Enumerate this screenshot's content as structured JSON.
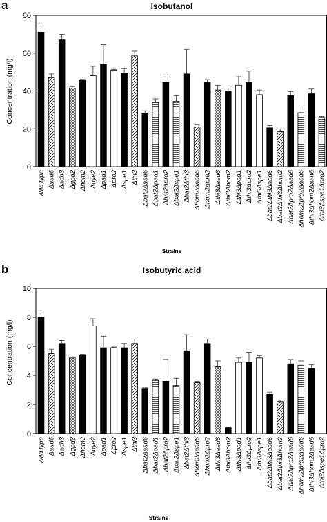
{
  "chart_data": [
    {
      "panel": "a",
      "type": "bar",
      "title": "Isobutanol",
      "xlabel": "Strains",
      "ylabel": "Concentration (mg/l)",
      "ylim": [
        0,
        80
      ],
      "yticks": [
        "0",
        "20",
        "40",
        "60",
        "80"
      ],
      "grid": false,
      "categories": [
        "Wild type",
        "Δaad6",
        "Δadh3",
        "Δgpd2",
        "Δhom2",
        "Δoye2",
        "Δpad1",
        "Δpro2",
        "Δspe1",
        "Δthi3",
        "Δbat2Δaad6",
        "Δbat2Δpad1",
        "Δbat2Δpro2",
        "Δbat2Δspe1",
        "Δbat2Δthi3",
        "Δhom2Δaad6",
        "Δhom2Δpro2",
        "Δthi3Δaad6",
        "Δthi3Δhom2",
        "Δthi3Δpad1",
        "Δthi3Δpro2",
        "Δthi3Δspe1",
        "Δbat2Δthi3Δaad6",
        "Δbat2Δthi3Δhom2",
        "Δbat2Δpro2Δaad6",
        "Δhom2Δpro2Δaad6",
        "Δthi3Δhom2Δaad6",
        "Δthi3Δspe1Δpro2"
      ],
      "values": [
        71,
        47,
        67,
        41.5,
        45.5,
        48,
        54,
        51,
        49.5,
        58.5,
        28,
        34,
        44.5,
        34.5,
        49,
        21,
        44.5,
        40.5,
        40,
        43,
        44.5,
        38,
        20.5,
        18.5,
        37.5,
        28.5,
        38.5,
        26
      ],
      "errors": [
        4.5,
        2,
        3,
        0.8,
        0.6,
        5,
        10.5,
        0.4,
        2.3,
        2.5,
        1.5,
        1.8,
        4,
        3,
        13,
        1,
        1.5,
        2.5,
        1.5,
        4.5,
        6,
        2.5,
        1.3,
        1.5,
        2.2,
        2,
        2.5,
        0.5
      ],
      "patterns": [
        "black",
        "diag",
        "black",
        "cross",
        "black",
        "white",
        "black",
        "white",
        "black",
        "diag",
        "black",
        "horiz",
        "black",
        "horiz",
        "black",
        "diag",
        "black",
        "cross",
        "black",
        "white",
        "black",
        "white",
        "black",
        "diag",
        "black",
        "horiz",
        "black",
        "horiz"
      ]
    },
    {
      "panel": "b",
      "type": "bar",
      "title": "Isobutyric acid",
      "xlabel": "Strains",
      "ylabel": "Concentration (mg/l)",
      "ylim": [
        0,
        10
      ],
      "yticks": [
        "0",
        "2",
        "4",
        "6",
        "8",
        "10"
      ],
      "grid": false,
      "categories": [
        "Wild type",
        "Δaad6",
        "Δadh3",
        "Δgpd2",
        "Δhom2",
        "Δoye2",
        "Δpad1",
        "Δpro2",
        "Δspe1",
        "Δthi3",
        "Δbat2Δaad6",
        "Δbat2Δpad1",
        "Δbat2Δpro2",
        "Δbat2Δspe1",
        "Δbat2Δthi3",
        "Δhom2Δaad6",
        "Δhom2Δpro2",
        "Δthi3Δaad6",
        "Δthi3Δhom2",
        "Δthi3Δpad1",
        "Δthi3Δpro2",
        "Δthi3Δspe1",
        "Δbat2Δthi3Δaad6",
        "Δbat2Δthi3Δhom2",
        "Δbat2Δpro2Δaad6",
        "Δhom2Δpro2Δaad6",
        "Δthi3Δhom2Δaad6",
        "Δthi3Δspe1Δpro2"
      ],
      "values": [
        8,
        5.5,
        6.2,
        5.2,
        5.4,
        7.4,
        5.9,
        5.9,
        5.9,
        6.2,
        3.1,
        3.7,
        3.6,
        3.3,
        5.7,
        3.5,
        6.2,
        4.6,
        0.4,
        4.9,
        4.9,
        5.2,
        2.7,
        2.2,
        4.8,
        4.7,
        4.5,
        0
      ],
      "errors": [
        0.5,
        0.3,
        0.2,
        0.2,
        0.05,
        0.5,
        0.8,
        0.05,
        0.3,
        0.3,
        0.05,
        0.05,
        1.5,
        0.5,
        1.1,
        0.1,
        0.3,
        0.4,
        0.05,
        0.3,
        0.7,
        0.15,
        0.15,
        0.1,
        0.3,
        0.3,
        0.25,
        0
      ]
    }
  ]
}
